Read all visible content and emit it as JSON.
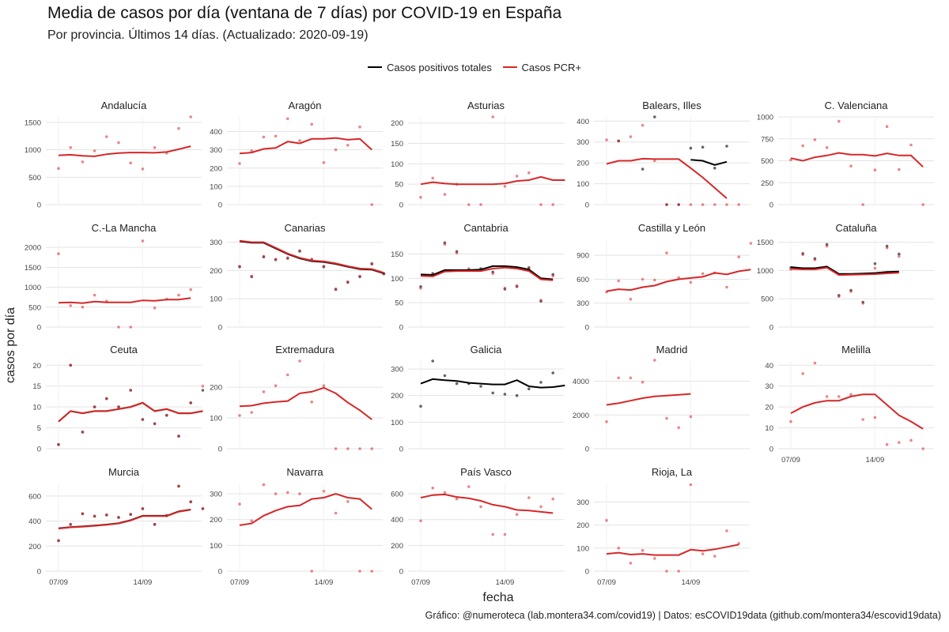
{
  "title": "Media de casos por día (ventana de 7 días) por COVID-19 en España",
  "subtitle": "Por provincia. Últimos 14 días. (Actualizado: 2020-09-19)",
  "legend": [
    {
      "label": "Casos positivos totales",
      "color": "#000000"
    },
    {
      "label": "Casos PCR+",
      "color": "#d62728"
    }
  ],
  "ylabel": "casos por día",
  "xlabel": "fecha",
  "caption": "Gráfico: @numeroteca (lab.montera34.com/covid19) | Datos: esCOVID19data (github.com/montera34/escovid19data)",
  "chart_data": {
    "type": "line",
    "facet": true,
    "x_ticks": [
      "07/09",
      "14/09"
    ],
    "days": [
      "07/09",
      "08/09",
      "09/09",
      "10/09",
      "11/09",
      "12/09",
      "13/09",
      "14/09",
      "15/09",
      "16/09",
      "17/09",
      "18/09",
      "19/09"
    ],
    "panels": [
      {
        "name": "Andalucía",
        "yticks": [
          0,
          500,
          1000,
          1500
        ],
        "ylim": [
          0,
          1600
        ],
        "pcr_line": [
          900,
          910,
          890,
          880,
          920,
          940,
          950,
          950,
          945,
          960,
          1010,
          1065
        ],
        "pcr_points": [
          660,
          1040,
          780,
          980,
          1240,
          1130,
          760,
          650,
          1040,
          940,
          1390,
          1600
        ],
        "total_line": null,
        "total_points": null
      },
      {
        "name": "Aragón",
        "yticks": [
          0,
          100,
          200,
          300,
          400
        ],
        "ylim": [
          0,
          480
        ],
        "pcr_line": [
          280,
          285,
          305,
          310,
          345,
          335,
          360,
          360,
          365,
          355,
          360,
          300
        ],
        "pcr_points": [
          225,
          295,
          370,
          375,
          470,
          350,
          440,
          230,
          300,
          325,
          425,
          0
        ],
        "total_line": null,
        "total_points": null
      },
      {
        "name": "Asturias",
        "yticks": [
          0,
          50,
          100,
          150,
          200
        ],
        "ylim": [
          0,
          215
        ],
        "pcr_line": [
          50,
          55,
          52,
          50,
          50,
          50,
          50,
          52,
          58,
          60,
          68,
          60,
          60
        ],
        "pcr_points": [
          18,
          65,
          25,
          50,
          0,
          0,
          215,
          45,
          70,
          78,
          0,
          0
        ],
        "total_line": null,
        "total_points": null
      },
      {
        "name": "Balears, Illes",
        "yticks": [
          0,
          100,
          200,
          300,
          400
        ],
        "ylim": [
          0,
          420
        ],
        "pcr_line": [
          195,
          210,
          210,
          220,
          218,
          218,
          218,
          175,
          130,
          80,
          30
        ],
        "pcr_points": [
          310,
          305,
          325,
          380,
          210,
          0,
          0,
          0,
          0,
          0,
          0,
          0
        ],
        "total_line": [
          null,
          null,
          null,
          null,
          null,
          null,
          null,
          215,
          210,
          190,
          205
        ],
        "total_points": [
          null,
          305,
          null,
          170,
          420,
          0,
          0,
          270,
          275,
          175,
          280
        ],
        "pcr_line_start": 0
      },
      {
        "name": "C. Valenciana",
        "yticks": [
          0,
          250,
          500,
          750,
          1000
        ],
        "ylim": [
          0,
          1000
        ],
        "pcr_line": [
          530,
          500,
          540,
          560,
          590,
          570,
          570,
          555,
          585,
          560,
          560,
          430
        ],
        "pcr_points": [
          510,
          670,
          740,
          650,
          950,
          440,
          0,
          395,
          890,
          400,
          680,
          0
        ],
        "total_line": null,
        "total_points": null
      },
      {
        "name": "C.-La Mancha",
        "yticks": [
          0,
          500,
          1000,
          1500,
          2000
        ],
        "ylim": [
          0,
          2200
        ],
        "pcr_line": [
          610,
          620,
          600,
          640,
          620,
          620,
          620,
          670,
          660,
          690,
          690,
          730
        ],
        "pcr_points": [
          1840,
          540,
          500,
          800,
          650,
          0,
          0,
          2160,
          480,
          700,
          800,
          940
        ],
        "total_line": null,
        "total_points": null
      },
      {
        "name": "Canarias",
        "yticks": [
          0,
          100,
          200,
          300
        ],
        "ylim": [
          0,
          310
        ],
        "pcr_line": [
          305,
          300,
          300,
          280,
          260,
          245,
          235,
          232,
          225,
          215,
          207,
          205,
          192
        ],
        "pcr_points": [
          215,
          180,
          250,
          240,
          245,
          270,
          240,
          215,
          135,
          160,
          180,
          225,
          190
        ],
        "total_line": [
          303,
          298,
          298,
          278,
          258,
          243,
          233,
          230,
          223,
          213,
          205,
          203,
          190
        ],
        "total_points": [
          213,
          178,
          248,
          238,
          243,
          268,
          238,
          213,
          133,
          158,
          178,
          223,
          188
        ]
      },
      {
        "name": "Cantabria",
        "yticks": [
          0,
          50,
          100,
          150
        ],
        "ylim": [
          0,
          180
        ],
        "pcr_line": [
          105,
          104,
          114,
          115,
          115,
          115,
          120,
          122,
          120,
          115,
          98,
          96
        ],
        "pcr_points": [
          80,
          108,
          170,
          152,
          120,
          118,
          110,
          80,
          85,
          120,
          55,
          105
        ],
        "total_line": [
          108,
          107,
          117,
          117,
          117,
          118,
          125,
          125,
          123,
          118,
          100,
          98
        ],
        "total_points": [
          83,
          110,
          173,
          155,
          117,
          120,
          113,
          78,
          83,
          122,
          53,
          108
        ]
      },
      {
        "name": "Castilla y León",
        "yticks": [
          0,
          300,
          600,
          900
        ],
        "ylim": [
          0,
          1100
        ],
        "pcr_line": [
          450,
          475,
          465,
          500,
          520,
          570,
          600,
          615,
          630,
          680,
          660,
          700,
          720
        ],
        "pcr_points": [
          440,
          580,
          350,
          600,
          590,
          930,
          620,
          560,
          670,
          680,
          500,
          880,
          1050
        ],
        "total_line": null,
        "total_points": null
      },
      {
        "name": "Cataluña",
        "yticks": [
          0,
          500,
          1000,
          1500
        ],
        "ylim": [
          0,
          1550
        ],
        "pcr_line": [
          1030,
          1020,
          1020,
          1050,
          920,
          925,
          930,
          935,
          950,
          960
        ],
        "pcr_points": [
          1020,
          1280,
          1190,
          1430,
          540,
          630,
          420,
          1040,
          1400,
          1250
        ],
        "total_line": [
          1060,
          1040,
          1040,
          1070,
          940,
          940,
          945,
          955,
          975,
          980
        ],
        "total_points": [
          1050,
          1300,
          1210,
          1460,
          560,
          650,
          440,
          1120,
          1430,
          1290
        ]
      },
      {
        "name": "Ceuta",
        "yticks": [
          0,
          5,
          10,
          15,
          20
        ],
        "ylim": [
          0,
          21
        ],
        "pcr_line": [
          6.5,
          9,
          8.5,
          9,
          9,
          9.5,
          10,
          11,
          9,
          9.5,
          8.5,
          8.5,
          9
        ],
        "pcr_points": [
          1,
          20,
          4,
          10,
          12,
          10,
          14,
          7,
          6,
          8,
          3,
          11,
          15
        ],
        "total_line": [
          6.5,
          9,
          8.5,
          9,
          9,
          9.5,
          10,
          11,
          9,
          9.5,
          8.5,
          8.5,
          9
        ],
        "total_points": [
          1,
          20,
          4,
          10,
          12,
          10,
          14,
          7,
          6,
          8,
          3,
          11,
          14
        ]
      },
      {
        "name": "Extremadura",
        "yticks": [
          0,
          100,
          200
        ],
        "ylim": [
          0,
          285
        ],
        "pcr_line": [
          138,
          140,
          148,
          152,
          155,
          180,
          185,
          198,
          180,
          150,
          125,
          95
        ],
        "pcr_points": [
          108,
          118,
          185,
          205,
          240,
          285,
          152,
          205,
          0,
          0,
          0,
          0
        ],
        "total_line": null,
        "total_points": null
      },
      {
        "name": "Galicia",
        "yticks": [
          0,
          100,
          200,
          300
        ],
        "ylim": [
          0,
          330
        ],
        "pcr_line": null,
        "pcr_points": null,
        "total_line": [
          245,
          262,
          258,
          255,
          248,
          245,
          242,
          242,
          258,
          235,
          230,
          232,
          238
        ],
        "total_points": [
          160,
          330,
          275,
          245,
          245,
          235,
          210,
          205,
          200,
          225,
          250,
          285
        ]
      },
      {
        "name": "Madrid",
        "yticks": [
          0,
          2000,
          4000
        ],
        "ylim": [
          0,
          5200
        ],
        "pcr_line": [
          2600,
          2700,
          2850,
          3000,
          3100,
          3150,
          3200,
          3250
        ],
        "pcr_points": [
          1600,
          4200,
          4200,
          3950,
          5250,
          1800,
          1250,
          1900
        ],
        "total_line": null,
        "total_points": null
      },
      {
        "name": "Melilla",
        "yticks": [
          0,
          10,
          20,
          30,
          40
        ],
        "ylim": [
          0,
          42
        ],
        "pcr_line": [
          17,
          20,
          22,
          23,
          23,
          25,
          26,
          26,
          21,
          16,
          13,
          9.5
        ],
        "pcr_points": [
          13,
          36,
          41,
          25,
          25,
          26,
          14,
          15,
          2,
          3,
          4,
          0
        ],
        "total_line": null,
        "total_points": null
      },
      {
        "name": "Murcia",
        "yticks": [
          0,
          200,
          400,
          600
        ],
        "ylim": [
          0,
          700
        ],
        "pcr_line": [
          340,
          350,
          355,
          362,
          370,
          380,
          405,
          440,
          440,
          440,
          475,
          490
        ],
        "pcr_points": [
          245,
          375,
          460,
          440,
          450,
          430,
          455,
          500,
          375,
          445,
          680,
          555,
          500
        ],
        "total_line": [
          342,
          352,
          357,
          364,
          372,
          382,
          407,
          442,
          442,
          442,
          477,
          492
        ],
        "total_points": [
          243,
          373,
          458,
          438,
          448,
          428,
          453,
          498,
          373,
          443,
          678,
          553,
          498
        ]
      },
      {
        "name": "Navarra",
        "yticks": [
          0,
          100,
          200,
          300
        ],
        "ylim": [
          0,
          340
        ],
        "pcr_line": [
          178,
          185,
          215,
          235,
          250,
          255,
          280,
          285,
          300,
          285,
          280,
          240
        ],
        "pcr_points": [
          260,
          195,
          335,
          300,
          305,
          300,
          0,
          310,
          225,
          270,
          0,
          0
        ],
        "total_line": null,
        "total_points": null
      },
      {
        "name": "País Vasco",
        "yticks": [
          0,
          200,
          400,
          600
        ],
        "ylim": [
          0,
          680
        ],
        "pcr_line": [
          570,
          590,
          595,
          575,
          565,
          545,
          515,
          500,
          475,
          470,
          460,
          450
        ],
        "pcr_points": [
          390,
          645,
          610,
          560,
          655,
          500,
          285,
          285,
          440,
          570,
          500,
          560
        ],
        "total_line": null,
        "total_points": null
      },
      {
        "name": "Rioja, La",
        "yticks": [
          0,
          100,
          200,
          300
        ],
        "ylim": [
          0,
          380
        ],
        "pcr_line": [
          75,
          80,
          72,
          75,
          70,
          70,
          70,
          93,
          88,
          95,
          105,
          115
        ],
        "pcr_points": [
          220,
          100,
          35,
          90,
          55,
          0,
          0,
          375,
          75,
          65,
          175,
          120
        ],
        "total_line": null,
        "total_points": null
      }
    ]
  }
}
